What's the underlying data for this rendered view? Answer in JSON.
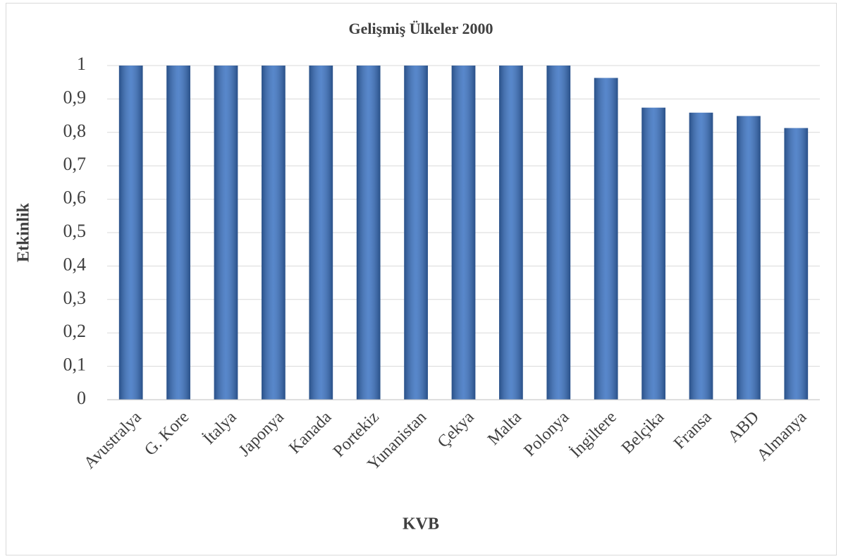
{
  "chart_data": {
    "type": "bar",
    "title": "Gelişmiş Ülkeler 2000",
    "x_label": "KVB",
    "y_label": "Etkinlik",
    "categories": [
      "Avustralya",
      "G. Kore",
      "İtalya",
      "Japonya",
      "Kanada",
      "Portekiz",
      "Yunanistan",
      "Çekya",
      "Malta",
      "Polonya",
      "İngiltere",
      "Belçika",
      "Fransa",
      "ABD",
      "Almanya"
    ],
    "values": [
      1,
      1,
      1,
      1,
      1,
      1,
      1,
      1,
      1,
      1,
      0.963,
      0.874,
      0.859,
      0.849,
      0.813
    ],
    "color": "#3a72c2",
    "ylim": [
      0,
      1
    ],
    "yticks": [
      0,
      {
        "value": 0.1,
        "label": "0,1"
      },
      {
        "value": 0.2,
        "label": "0,2"
      },
      {
        "value": 0.3,
        "label": "0,3"
      },
      {
        "value": 0.4,
        "label": "0,4"
      },
      {
        "value": 0.5,
        "label": "0,5"
      },
      {
        "value": 0.6,
        "label": "0,6"
      },
      {
        "value": 0.7,
        "label": "0,7"
      },
      {
        "value": 0.8,
        "label": "0,8"
      },
      {
        "value": 0.9,
        "label": "0,9"
      },
      1
    ],
    "grid": true
  }
}
